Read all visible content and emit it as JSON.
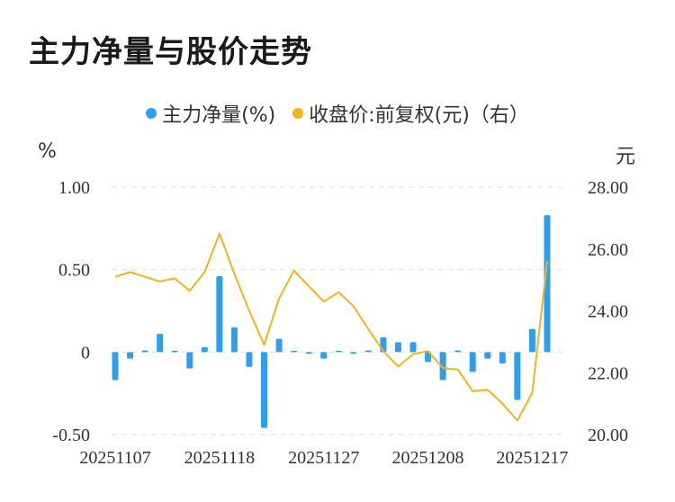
{
  "title": "主力净量与股价走势",
  "legend": {
    "net": "主力净量(%)",
    "price": "收盘价:前复权(元)（右）"
  },
  "units": {
    "left": "%",
    "right": "元"
  },
  "colors": {
    "bar": "#2e9ff0",
    "line": "#f2b418",
    "grid": "#e3e3e3"
  },
  "chart_data": {
    "type": "bar+line",
    "dates": [
      "20251107",
      "20251110",
      "20251111",
      "20251112",
      "20251113",
      "20251114",
      "20251117",
      "20251118",
      "20251119",
      "20251120",
      "20251121",
      "20251124",
      "20251125",
      "20251126",
      "20251127",
      "20251128",
      "20251201",
      "20251202",
      "20251203",
      "20251204",
      "20251205",
      "20251208",
      "20251209",
      "20251210",
      "20251211",
      "20251212",
      "20251215",
      "20251216",
      "20251217",
      "20251218"
    ],
    "x_tick_labels": [
      "20251107",
      "20251118",
      "20251127",
      "20251208",
      "20251217"
    ],
    "x_tick_indices": [
      0,
      7,
      14,
      21,
      28
    ],
    "series": [
      {
        "name": "主力净量(%)",
        "type": "bar",
        "axis": "left",
        "values": [
          -0.17,
          -0.04,
          0.01,
          0.11,
          0.0,
          -0.1,
          0.03,
          0.46,
          0.15,
          -0.09,
          -0.46,
          0.08,
          0.0,
          -0.01,
          -0.04,
          0.0,
          -0.01,
          0.01,
          0.09,
          0.06,
          0.06,
          -0.06,
          -0.17,
          0.01,
          -0.12,
          -0.04,
          -0.07,
          -0.29,
          0.14,
          0.83
        ]
      },
      {
        "name": "收盘价:前复权(元)（右）",
        "type": "line",
        "axis": "right",
        "values": [
          25.1,
          25.25,
          25.1,
          24.95,
          25.05,
          24.65,
          25.25,
          26.5,
          25.2,
          24.0,
          22.9,
          24.4,
          25.3,
          24.8,
          24.3,
          24.6,
          24.15,
          23.4,
          22.7,
          22.2,
          22.6,
          22.7,
          22.15,
          22.1,
          21.4,
          21.45,
          21.0,
          20.45,
          21.35,
          25.6
        ]
      }
    ],
    "y_left": {
      "min": -0.5,
      "max": 1.0,
      "ticks": [
        "-0.50",
        "0",
        "0.50",
        "1.00"
      ],
      "tick_values": [
        -0.5,
        0,
        0.5,
        1.0
      ]
    },
    "y_right": {
      "min": 20.0,
      "max": 28.0,
      "ticks": [
        "20.00",
        "22.00",
        "24.00",
        "26.00",
        "28.00"
      ],
      "tick_values": [
        20,
        22,
        24,
        26,
        28
      ]
    },
    "grid": "horizontal dashed"
  }
}
